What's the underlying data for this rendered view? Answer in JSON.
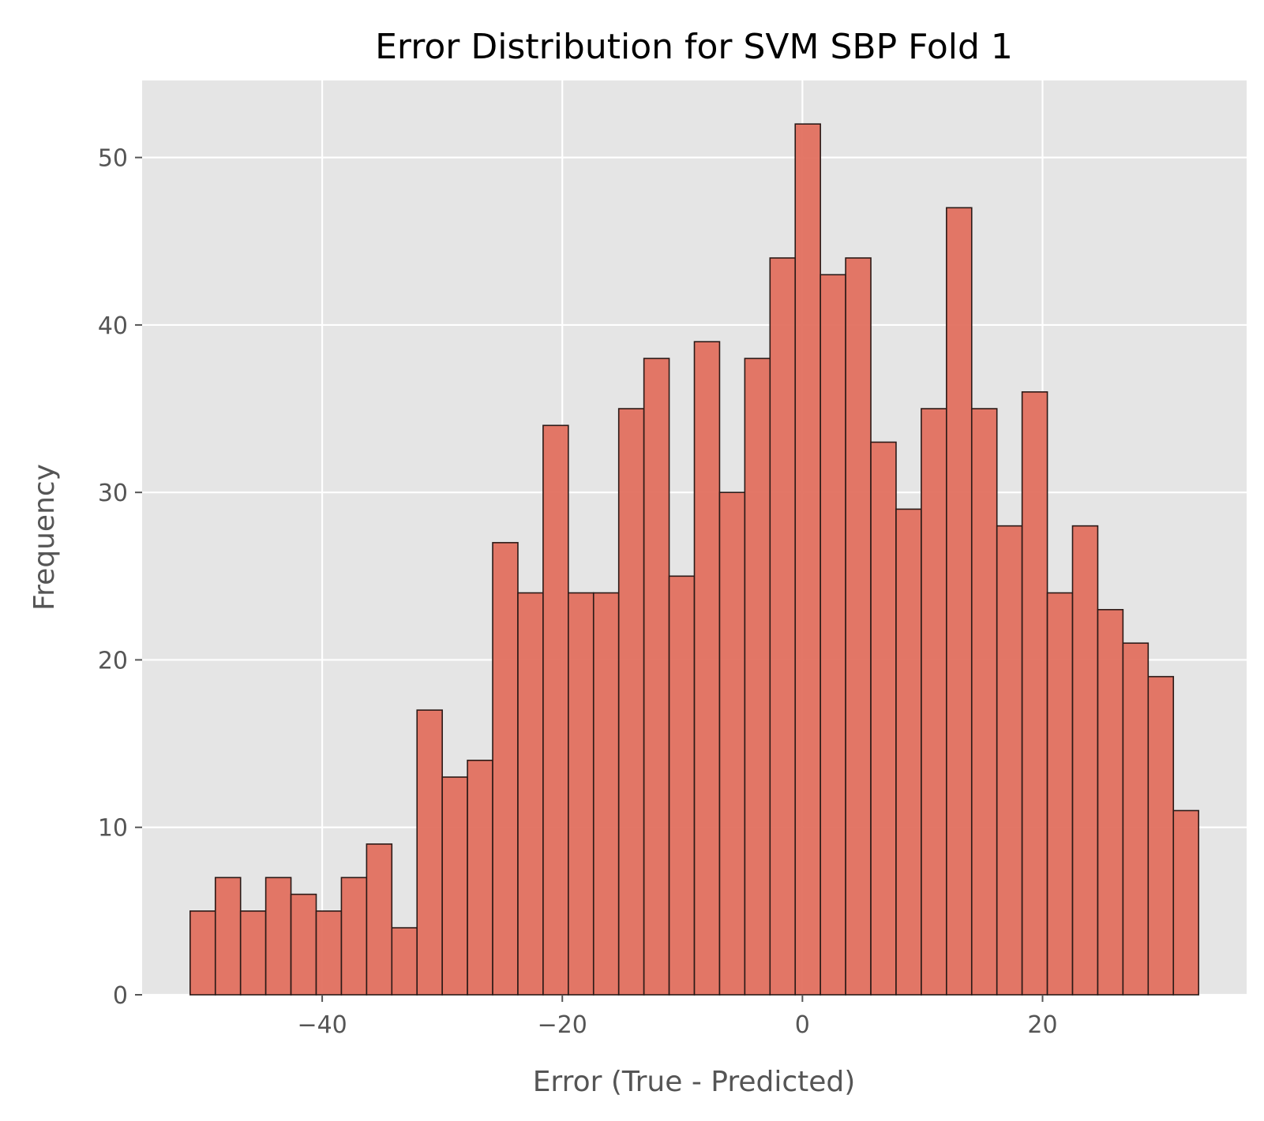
{
  "chart_data": {
    "type": "bar",
    "title": "Error Distribution for SVM SBP Fold 1",
    "xlabel": "Error (True - Predicted)",
    "ylabel": "Frequency",
    "xlim": [
      -55,
      37
    ],
    "ylim": [
      0,
      54.6
    ],
    "x_ticks": [
      -40,
      -20,
      0,
      20
    ],
    "x_tick_labels": [
      "−40",
      "−20",
      "0",
      "20"
    ],
    "y_ticks": [
      0,
      10,
      20,
      30,
      40,
      50
    ],
    "y_tick_labels": [
      "0",
      "10",
      "20",
      "30",
      "40",
      "50"
    ],
    "grid": true,
    "bin_start": -51.0,
    "bin_width": 2.1,
    "values": [
      5,
      7,
      5,
      7,
      6,
      5,
      7,
      9,
      4,
      17,
      13,
      14,
      27,
      24,
      34,
      24,
      24,
      35,
      38,
      25,
      39,
      30,
      38,
      44,
      52,
      43,
      44,
      33,
      29,
      35,
      47,
      35,
      28,
      36,
      24,
      28,
      23,
      21,
      19,
      11
    ],
    "colors": {
      "bar_fill": "#e2705f",
      "bar_edge": "#2b1a17",
      "plot_background": "#e5e5e5",
      "grid": "#ffffff"
    }
  }
}
